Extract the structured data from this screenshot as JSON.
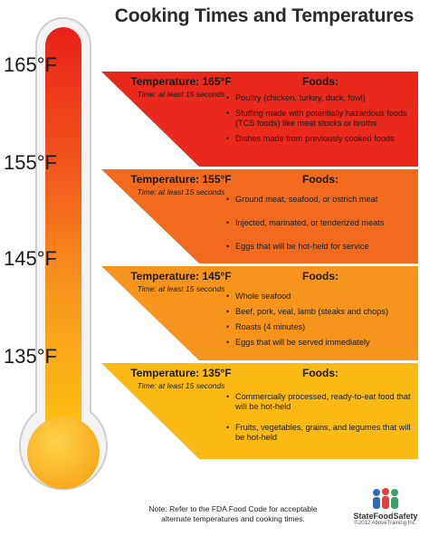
{
  "title": "Cooking Times and Temperatures",
  "scale_labels": [
    "165°F",
    "155°F",
    "145°F",
    "135°F"
  ],
  "bands": [
    {
      "temperature": "Temperature: 165°F",
      "time": "Time: at least 15 seconds",
      "foods_heading": "Foods:",
      "color": "#e8291c",
      "foods": [
        "Poultry (chicken, turkey, duck, fowl)",
        "Stuffing made with potentially hazardous foods (TCS foods) like meat stocks or broths",
        "Dishes made from previously cooked foods"
      ]
    },
    {
      "temperature": "Temperature: 155°F",
      "time": "Time: at least 15 seconds",
      "foods_heading": "Foods:",
      "color": "#f26a1e",
      "foods": [
        "Ground meat, seafood, or ostrich meat",
        "Injected, marinated, or tenderized meats",
        "Eggs that will be hot-held for service"
      ]
    },
    {
      "temperature": "Temperature: 145°F",
      "time": "Time: at least 15 seconds",
      "foods_heading": "Foods:",
      "color": "#f7941d",
      "foods": [
        "Whole seafood",
        "Beef, pork, veal, lamb (steaks and chops)",
        "Roasts (4 minutes)",
        "Eggs that will be served immediately"
      ]
    },
    {
      "temperature": "Temperature: 135°F",
      "time": "Time: at least 15 seconds",
      "foods_heading": "Foods:",
      "color": "#fbb913",
      "foods": [
        "Commercially processed, ready-to-eat food that will be hot-held",
        "Fruits, vegetables, grains, and legumes that will be hot-held"
      ]
    }
  ],
  "note": "Note: Refer to the FDA Food Code for acceptable alternate temperatures and cooking times.",
  "brand": {
    "name": "StateFoodSafety",
    "copyright": "©2012 AboveTraining Inc."
  }
}
